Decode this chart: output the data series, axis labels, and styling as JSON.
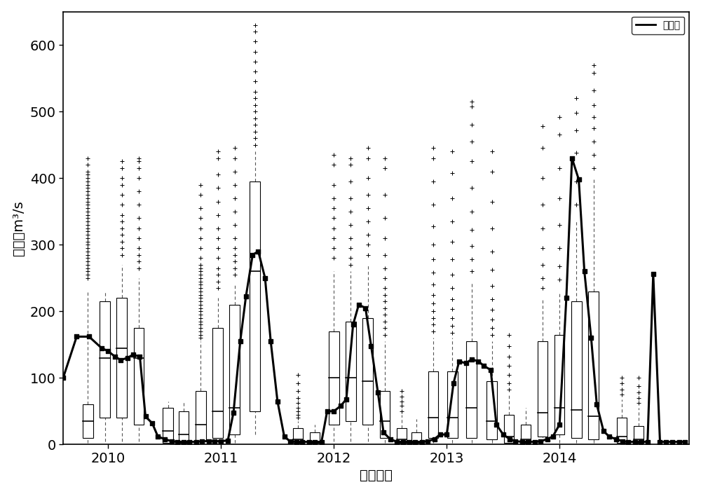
{
  "xlabel": "时间：年",
  "ylabel": "径流：m³/s",
  "xlim": [
    2009.6,
    2015.15
  ],
  "ylim": [
    0,
    650
  ],
  "yticks": [
    0,
    100,
    200,
    300,
    400,
    500,
    600
  ],
  "xtick_positions": [
    2010,
    2011,
    2012,
    2013,
    2014
  ],
  "legend_label": "实测值",
  "background_color": "#ffffff",
  "line_color": "#000000",
  "box_color": "#ffffff",
  "box_edge_color": "#000000",
  "median_color": "#000000",
  "whisker_color": "#555555",
  "flier_color": "#000000",
  "box_width": 0.09,
  "box_groups": [
    {
      "positions": [
        2009.82,
        2009.97,
        2010.12,
        2010.27
      ],
      "stats": [
        {
          "q1": 10,
          "med": 35,
          "q3": 60,
          "whislo": 2,
          "whishi": 230,
          "fliers_hi": [
            250,
            255,
            260,
            265,
            270,
            275,
            280,
            285,
            290,
            295,
            300,
            305,
            310,
            315,
            320,
            325,
            330,
            335,
            340,
            345,
            350,
            355,
            360,
            365,
            370,
            375,
            380,
            385,
            390,
            395,
            400,
            405,
            410,
            420,
            430
          ],
          "fliers_lo": []
        },
        {
          "q1": 40,
          "med": 130,
          "q3": 215,
          "whislo": 5,
          "whishi": 230,
          "fliers_hi": [],
          "fliers_lo": []
        },
        {
          "q1": 40,
          "med": 145,
          "q3": 220,
          "whislo": 5,
          "whishi": 270,
          "fliers_hi": [
            285,
            295,
            305,
            315,
            325,
            335,
            345,
            360,
            375,
            390,
            400,
            415,
            425
          ],
          "fliers_lo": []
        },
        {
          "q1": 30,
          "med": 130,
          "q3": 175,
          "whislo": 5,
          "whishi": 250,
          "fliers_hi": [
            265,
            275,
            285,
            295,
            310,
            325,
            340,
            360,
            380,
            400,
            415,
            425,
            430
          ],
          "fliers_lo": []
        }
      ]
    },
    {
      "positions": [
        2010.53,
        2010.67
      ],
      "stats": [
        {
          "q1": 3,
          "med": 20,
          "q3": 55,
          "whislo": 1,
          "whishi": 65,
          "fliers_hi": [],
          "fliers_lo": []
        },
        {
          "q1": 3,
          "med": 15,
          "q3": 50,
          "whislo": 1,
          "whishi": 65,
          "fliers_hi": [],
          "fliers_lo": []
        }
      ]
    },
    {
      "positions": [
        2010.82,
        2010.97,
        2011.12,
        2011.3
      ],
      "stats": [
        {
          "q1": 5,
          "med": 30,
          "q3": 80,
          "whislo": 1,
          "whishi": 155,
          "fliers_hi": [
            160,
            165,
            170,
            175,
            180,
            185,
            190,
            195,
            200,
            205,
            210,
            215,
            220,
            225,
            230,
            235,
            240,
            245,
            250,
            255,
            260,
            265,
            270,
            280,
            295,
            310,
            325,
            340,
            355,
            375,
            390
          ],
          "fliers_lo": []
        },
        {
          "q1": 10,
          "med": 50,
          "q3": 175,
          "whislo": 2,
          "whishi": 220,
          "fliers_hi": [
            235,
            245,
            255,
            265,
            280,
            295,
            310,
            325,
            345,
            365,
            385,
            405,
            430,
            440
          ],
          "fliers_lo": []
        },
        {
          "q1": 15,
          "med": 55,
          "q3": 210,
          "whislo": 2,
          "whishi": 240,
          "fliers_hi": [
            255,
            265,
            275,
            285,
            295,
            310,
            330,
            350,
            370,
            390,
            410,
            430,
            445
          ],
          "fliers_lo": []
        },
        {
          "q1": 50,
          "med": 260,
          "q3": 395,
          "whislo": 15,
          "whishi": 440,
          "fliers_hi": [
            450,
            460,
            470,
            480,
            490,
            500,
            510,
            520,
            530,
            545,
            560,
            575,
            590,
            605,
            620,
            630
          ],
          "fliers_lo": []
        }
      ]
    },
    {
      "positions": [
        2011.68,
        2011.83
      ],
      "stats": [
        {
          "q1": 2,
          "med": 8,
          "q3": 25,
          "whislo": 1,
          "whishi": 35,
          "fliers_hi": [
            40,
            45,
            50,
            55,
            62,
            70,
            80,
            92,
            105
          ],
          "fliers_lo": []
        },
        {
          "q1": 2,
          "med": 5,
          "q3": 18,
          "whislo": 1,
          "whishi": 30,
          "fliers_hi": [],
          "fliers_lo": []
        }
      ]
    },
    {
      "positions": [
        2012.0,
        2012.15,
        2012.3,
        2012.45
      ],
      "stats": [
        {
          "q1": 30,
          "med": 100,
          "q3": 170,
          "whislo": 5,
          "whishi": 260,
          "fliers_hi": [
            280,
            295,
            310,
            325,
            340,
            355,
            370,
            390,
            420,
            435
          ],
          "fliers_lo": []
        },
        {
          "q1": 35,
          "med": 100,
          "q3": 185,
          "whislo": 5,
          "whishi": 260,
          "fliers_hi": [
            270,
            280,
            295,
            310,
            330,
            350,
            370,
            395,
            420,
            430
          ],
          "fliers_lo": []
        },
        {
          "q1": 30,
          "med": 95,
          "q3": 190,
          "whislo": 5,
          "whishi": 270,
          "fliers_hi": [
            285,
            300,
            315,
            335,
            355,
            375,
            400,
            430,
            445
          ],
          "fliers_lo": []
        },
        {
          "q1": 10,
          "med": 35,
          "q3": 80,
          "whislo": 2,
          "whishi": 155,
          "fliers_hi": [
            165,
            175,
            185,
            195,
            205,
            215,
            225,
            235,
            250,
            265,
            285,
            310,
            340,
            375,
            415,
            430
          ],
          "fliers_lo": []
        }
      ]
    },
    {
      "positions": [
        2012.6,
        2012.73
      ],
      "stats": [
        {
          "q1": 2,
          "med": 8,
          "q3": 25,
          "whislo": 1,
          "whishi": 45,
          "fliers_hi": [
            50,
            58,
            65,
            72,
            80
          ],
          "fliers_lo": []
        },
        {
          "q1": 2,
          "med": 5,
          "q3": 18,
          "whislo": 1,
          "whishi": 38,
          "fliers_hi": [],
          "fliers_lo": []
        }
      ]
    },
    {
      "positions": [
        2012.88,
        2013.05,
        2013.22,
        2013.4
      ],
      "stats": [
        {
          "q1": 10,
          "med": 40,
          "q3": 110,
          "whislo": 2,
          "whishi": 160,
          "fliers_hi": [
            170,
            180,
            190,
            200,
            212,
            225,
            240,
            258,
            278,
            300,
            328,
            360,
            395,
            430,
            445
          ],
          "fliers_lo": []
        },
        {
          "q1": 10,
          "med": 40,
          "q3": 110,
          "whislo": 2,
          "whishi": 160,
          "fliers_hi": [
            168,
            178,
            190,
            203,
            218,
            235,
            255,
            278,
            305,
            335,
            370,
            408,
            440
          ],
          "fliers_lo": []
        },
        {
          "q1": 10,
          "med": 55,
          "q3": 155,
          "whislo": 2,
          "whishi": 245,
          "fliers_hi": [
            260,
            278,
            298,
            322,
            350,
            385,
            425,
            455,
            480,
            508,
            515
          ],
          "fliers_lo": []
        },
        {
          "q1": 8,
          "med": 35,
          "q3": 95,
          "whislo": 2,
          "whishi": 155,
          "fliers_hi": [
            165,
            175,
            188,
            202,
            218,
            238,
            262,
            290,
            325,
            365,
            410,
            440
          ],
          "fliers_lo": []
        }
      ]
    },
    {
      "positions": [
        2013.55,
        2013.7
      ],
      "stats": [
        {
          "q1": 3,
          "med": 12,
          "q3": 45,
          "whislo": 1,
          "whishi": 75,
          "fliers_hi": [
            82,
            92,
            105,
            118,
            132,
            148,
            165
          ],
          "fliers_lo": []
        },
        {
          "q1": 2,
          "med": 8,
          "q3": 30,
          "whislo": 1,
          "whishi": 55,
          "fliers_hi": [],
          "fliers_lo": []
        }
      ]
    },
    {
      "positions": [
        2013.85,
        2014.0,
        2014.15,
        2014.3
      ],
      "stats": [
        {
          "q1": 12,
          "med": 48,
          "q3": 155,
          "whislo": 2,
          "whishi": 218,
          "fliers_hi": [
            235,
            250,
            270,
            295,
            325,
            360,
            400,
            445,
            478
          ],
          "fliers_lo": []
        },
        {
          "q1": 15,
          "med": 55,
          "q3": 165,
          "whislo": 2,
          "whishi": 230,
          "fliers_hi": [
            248,
            268,
            295,
            330,
            370,
            415,
            465,
            492
          ],
          "fliers_lo": []
        },
        {
          "q1": 10,
          "med": 52,
          "q3": 215,
          "whislo": 2,
          "whishi": 335,
          "fliers_hi": [
            360,
            395,
            438,
            472,
            498,
            520
          ],
          "fliers_lo": []
        },
        {
          "q1": 8,
          "med": 42,
          "q3": 230,
          "whislo": 2,
          "whishi": 398,
          "fliers_hi": [
            415,
            435,
            455,
            475,
            492,
            510,
            532,
            558,
            570
          ],
          "fliers_lo": []
        }
      ]
    },
    {
      "positions": [
        2014.55,
        2014.7
      ],
      "stats": [
        {
          "q1": 3,
          "med": 12,
          "q3": 40,
          "whislo": 1,
          "whishi": 68,
          "fliers_hi": [
            75,
            82,
            92,
            100
          ],
          "fliers_lo": []
        },
        {
          "q1": 2,
          "med": 8,
          "q3": 28,
          "whislo": 1,
          "whishi": 55,
          "fliers_hi": [
            62,
            70,
            78,
            88,
            100
          ],
          "fliers_lo": []
        }
      ]
    }
  ],
  "observed_line": {
    "x": [
      2009.6,
      2009.72,
      2009.83,
      2009.94,
      2010.0,
      2010.06,
      2010.11,
      2010.17,
      2010.22,
      2010.28,
      2010.33,
      2010.39,
      2010.44,
      2010.5,
      2010.56,
      2010.61,
      2010.67,
      2010.72,
      2010.78,
      2010.83,
      2010.89,
      2010.94,
      2011.0,
      2011.06,
      2011.11,
      2011.17,
      2011.22,
      2011.28,
      2011.33,
      2011.39,
      2011.44,
      2011.5,
      2011.56,
      2011.61,
      2011.67,
      2011.72,
      2011.78,
      2011.83,
      2011.89,
      2011.94,
      2012.0,
      2012.06,
      2012.11,
      2012.17,
      2012.22,
      2012.28,
      2012.33,
      2012.39,
      2012.44,
      2012.5,
      2012.56,
      2012.61,
      2012.67,
      2012.72,
      2012.78,
      2012.83,
      2012.89,
      2012.94,
      2013.0,
      2013.06,
      2013.11,
      2013.17,
      2013.22,
      2013.28,
      2013.33,
      2013.39,
      2013.44,
      2013.5,
      2013.56,
      2013.61,
      2013.67,
      2013.72,
      2013.78,
      2013.83,
      2013.89,
      2013.94,
      2014.0,
      2014.06,
      2014.11,
      2014.17,
      2014.22,
      2014.28,
      2014.33,
      2014.39,
      2014.44,
      2014.5,
      2014.56,
      2014.61,
      2014.67,
      2014.72,
      2014.78,
      2014.83,
      2014.89,
      2014.94,
      2015.0,
      2015.06,
      2015.11
    ],
    "y": [
      100,
      162,
      162,
      145,
      140,
      132,
      127,
      130,
      135,
      132,
      42,
      32,
      12,
      8,
      5,
      4,
      4,
      4,
      4,
      5,
      5,
      5,
      5,
      6,
      48,
      155,
      222,
      285,
      290,
      250,
      155,
      65,
      12,
      5,
      4,
      4,
      4,
      4,
      4,
      50,
      50,
      58,
      68,
      180,
      210,
      205,
      148,
      78,
      18,
      8,
      4,
      4,
      4,
      4,
      4,
      5,
      8,
      15,
      15,
      92,
      125,
      122,
      128,
      125,
      118,
      112,
      30,
      15,
      8,
      5,
      4,
      4,
      4,
      5,
      8,
      12,
      30,
      220,
      430,
      398,
      260,
      160,
      60,
      20,
      12,
      8,
      5,
      4,
      4,
      4,
      4,
      256,
      4,
      4,
      4,
      4,
      4
    ]
  }
}
